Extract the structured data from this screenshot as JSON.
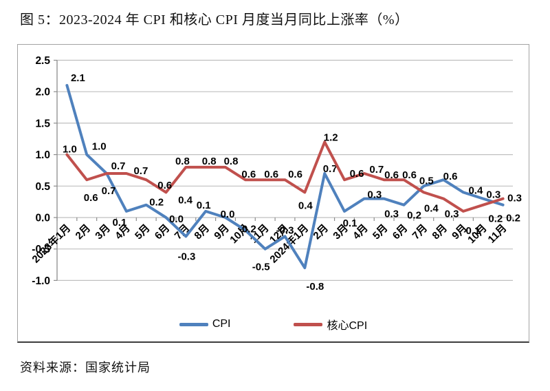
{
  "page": {
    "title": "图 5：2023-2024 年 CPI 和核心 CPI 月度当月同比上涨率（%）",
    "source": "资料来源：国家统计局"
  },
  "chart_data": {
    "type": "line",
    "title": "2023-2024 年 CPI 和核心 CPI 月度当月同比上涨率（%）",
    "categories": [
      "2023年1月",
      "2月",
      "3月",
      "4月",
      "5月",
      "6月",
      "7月",
      "8月",
      "9月",
      "10月",
      "11月",
      "12月",
      "2024年1月",
      "2月",
      "3月",
      "4月",
      "5月",
      "6月",
      "7月",
      "8月",
      "9月",
      "10月",
      "11月"
    ],
    "series": [
      {
        "name": "CPI",
        "color": "#4F81BD",
        "values": [
          2.1,
          1.0,
          0.7,
          0.1,
          0.2,
          0.0,
          -0.3,
          0.1,
          0.0,
          -0.2,
          -0.5,
          -0.3,
          -0.8,
          0.7,
          0.1,
          0.3,
          0.3,
          0.2,
          0.5,
          0.6,
          0.4,
          0.3,
          0.2
        ],
        "label_offsets": [
          [
            16,
            -11
          ],
          [
            18,
            -12
          ],
          [
            3,
            25
          ],
          [
            -10,
            16
          ],
          [
            15,
            -4
          ],
          [
            15,
            2
          ],
          [
            1,
            29
          ],
          [
            -3,
            -9
          ],
          [
            3,
            -5
          ],
          [
            3,
            -2
          ],
          [
            -6,
            26
          ],
          [
            0,
            -9
          ],
          [
            15,
            27
          ],
          [
            8,
            -7
          ],
          [
            8,
            17
          ],
          [
            15,
            -6
          ],
          [
            11,
            22
          ],
          [
            15,
            15
          ],
          [
            4,
            -8
          ],
          [
            10,
            -5
          ],
          [
            18,
            -3
          ],
          [
            15,
            -6
          ],
          [
            15,
            19
          ]
        ]
      },
      {
        "name": "核心CPI",
        "color": "#C0504D",
        "values": [
          1.0,
          0.6,
          0.7,
          0.7,
          0.6,
          0.4,
          0.8,
          0.8,
          0.8,
          0.6,
          0.6,
          0.6,
          0.4,
          1.2,
          0.6,
          0.7,
          0.6,
          0.6,
          0.4,
          0.3,
          0.1,
          0.2,
          0.3
        ],
        "label_offsets": [
          [
            4,
            -8
          ],
          [
            6,
            26
          ],
          [
            17,
            -11
          ],
          [
            21,
            -4
          ],
          [
            27,
            8
          ],
          [
            28,
            11
          ],
          [
            -5,
            -9
          ],
          [
            5,
            -9
          ],
          [
            8,
            -9
          ],
          [
            5,
            -8
          ],
          [
            9,
            -8
          ],
          [
            15,
            -8
          ],
          [
            1,
            19
          ],
          [
            9,
            -7
          ],
          [
            18,
            -9
          ],
          [
            18,
            -6
          ],
          [
            11,
            -7
          ],
          [
            8,
            -7
          ],
          [
            11,
            23
          ],
          [
            12,
            22
          ],
          [
            14,
            28
          ],
          [
            18,
            20
          ],
          [
            17,
            -1
          ]
        ]
      }
    ],
    "ylim": [
      -1.0,
      2.5
    ],
    "ytick_step": 0.5,
    "ytick_labels": [
      "2.5",
      "2.0",
      "1.5",
      "1.0",
      "0.5",
      "0.0",
      "-0.5",
      "-1.0"
    ],
    "grid": true,
    "legend_position": "bottom",
    "colors": {
      "gridline": "#bfbfbf",
      "axis": "#8c8c8c",
      "label_text": "#000000"
    }
  }
}
